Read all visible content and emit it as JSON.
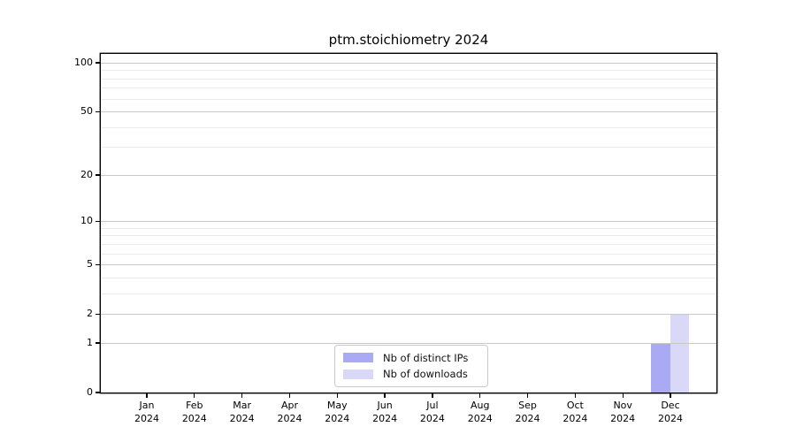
{
  "chart_data": {
    "type": "bar",
    "title": "ptm.stoichiometry 2024",
    "scale": "log10(1+y) symlog-like",
    "grid": "horizontal",
    "legend_position": "lower center",
    "xlabel": "",
    "ylabel": "",
    "ylim": [
      0,
      113
    ],
    "y_major_ticks": [
      0,
      1,
      2,
      5,
      10,
      20,
      50,
      100
    ],
    "y_minor_gridlines": [
      3,
      4,
      6,
      7,
      8,
      9,
      30,
      40,
      60,
      70,
      80,
      90
    ],
    "categories": [
      {
        "month": "Jan",
        "year": "2024"
      },
      {
        "month": "Feb",
        "year": "2024"
      },
      {
        "month": "Mar",
        "year": "2024"
      },
      {
        "month": "Apr",
        "year": "2024"
      },
      {
        "month": "May",
        "year": "2024"
      },
      {
        "month": "Jun",
        "year": "2024"
      },
      {
        "month": "Jul",
        "year": "2024"
      },
      {
        "month": "Aug",
        "year": "2024"
      },
      {
        "month": "Sep",
        "year": "2024"
      },
      {
        "month": "Oct",
        "year": "2024"
      },
      {
        "month": "Nov",
        "year": "2024"
      },
      {
        "month": "Dec",
        "year": "2024"
      }
    ],
    "series": [
      {
        "name": "Nb of distinct IPs",
        "color": "#a9a9f4",
        "values": [
          0,
          0,
          0,
          0,
          0,
          0,
          0,
          0,
          0,
          0,
          0,
          1
        ]
      },
      {
        "name": "Nb of downloads",
        "color": "#d9d9f7",
        "values": [
          0,
          0,
          0,
          0,
          0,
          0,
          0,
          0,
          0,
          0,
          0,
          2
        ]
      }
    ]
  },
  "legend": {
    "items": [
      {
        "label": "Nb of distinct IPs",
        "color": "#a9a9f4"
      },
      {
        "label": "Nb of downloads",
        "color": "#d9d9f7"
      }
    ]
  },
  "axis_colors": {
    "spine": "#000000",
    "tick_label": "#000000",
    "grid_major": "#c9c9c9",
    "grid_minor": "#ebebeb"
  }
}
